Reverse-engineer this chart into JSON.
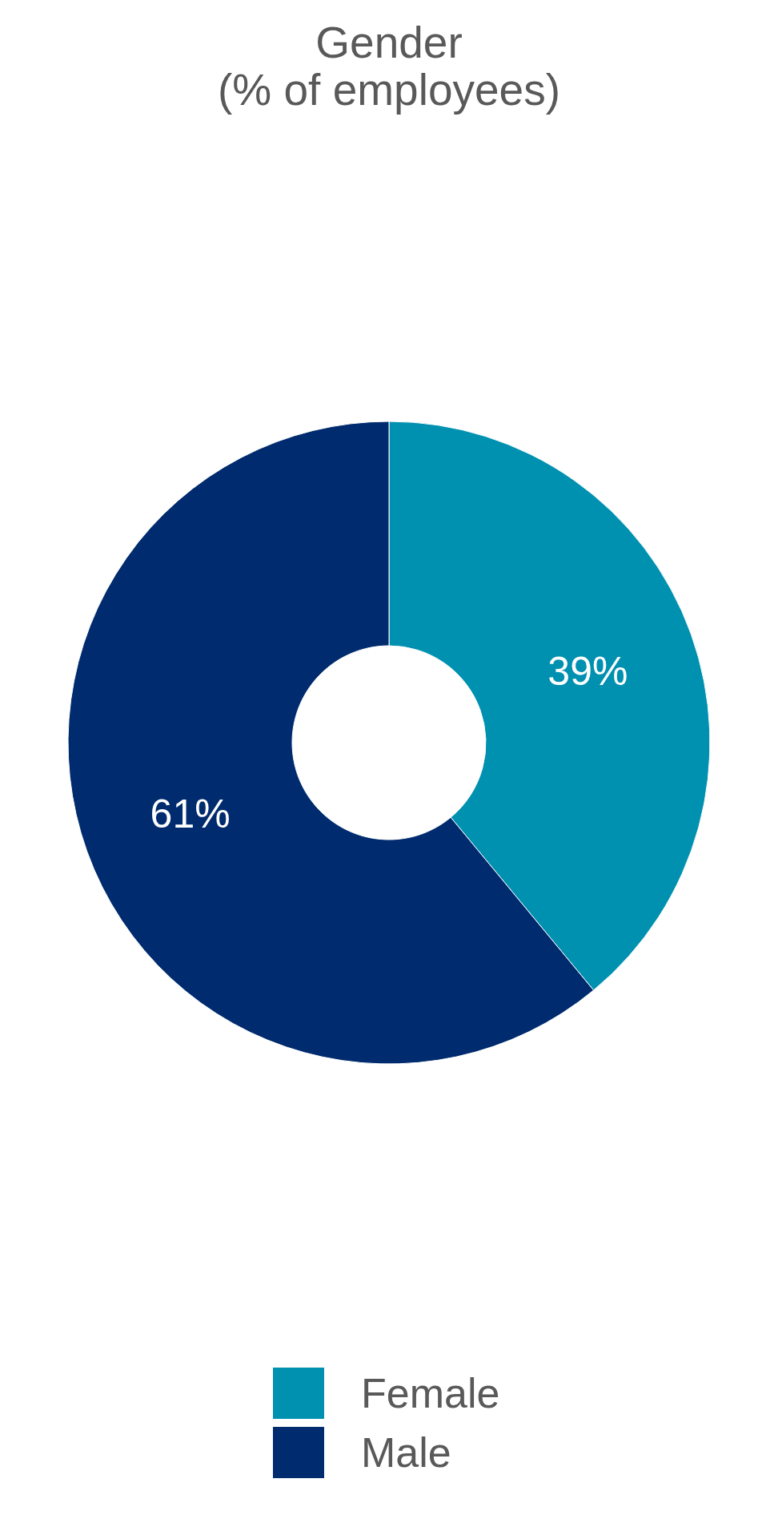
{
  "chart_data": {
    "type": "donut",
    "title": "Gender",
    "subtitle": "(% of employees)",
    "categories": [
      "Female",
      "Male"
    ],
    "values": [
      39,
      61
    ],
    "colors": [
      "#0090b0",
      "#002b6e"
    ],
    "value_labels": [
      "39%",
      "61%"
    ],
    "legend": "bottom"
  }
}
